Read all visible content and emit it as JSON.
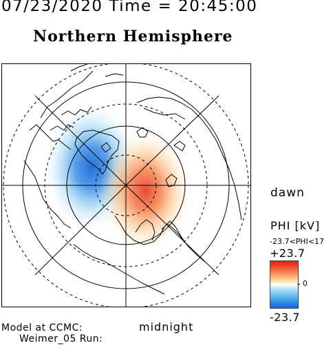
{
  "header": {
    "time_line": "07/23/2020 Time = 20:45:00",
    "title": "Northern Hemisphere"
  },
  "map": {
    "labels": {
      "dawn": "dawn",
      "midnight": "midnight"
    },
    "colors": {
      "coastline": "#000000",
      "positive_cell": "#d9241e",
      "negative_cell": "#1a66d6"
    }
  },
  "colorbar": {
    "title": "PHI [kV]",
    "range_text": "-23.7<PHI<17",
    "max_label": "+23.7",
    "zero_label": "0",
    "min_label": "-23.7",
    "max_value": 23.7,
    "min_value": -23.7
  },
  "footer": {
    "model": "Model at CCMC:",
    "run": "Weimer_05 Run:"
  }
}
